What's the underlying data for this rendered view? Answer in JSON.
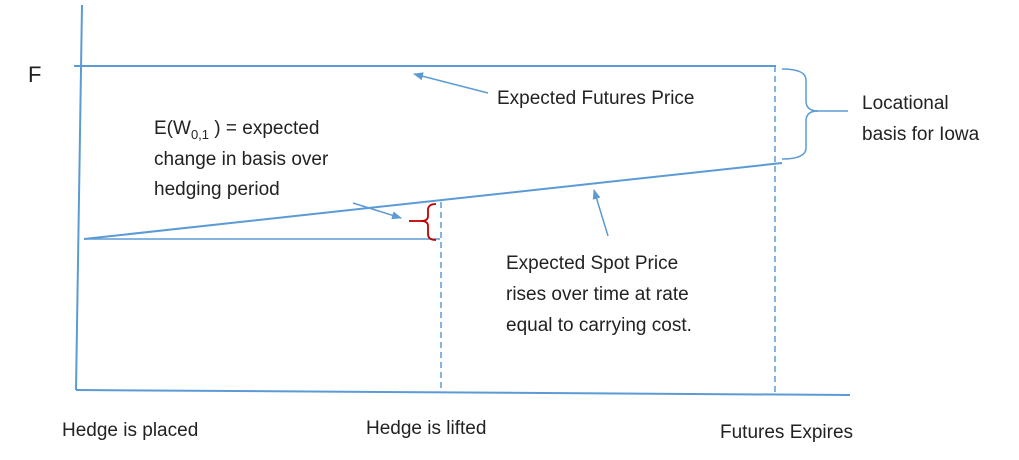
{
  "diagram": {
    "y_axis_label": "F",
    "labels": {
      "expected_futures_price": "Expected Futures Price",
      "locational_basis_line1": "Locational",
      "locational_basis_line2": "basis for Iowa",
      "basis_change_prefix": "E(W",
      "basis_change_subscript": "0,1",
      "basis_change_suffix": " ) = expected",
      "basis_change_line2": "change in basis over",
      "basis_change_line3": "hedging period",
      "spot_price_line1": "Expected Spot Price",
      "spot_price_line2": "rises over time at rate",
      "spot_price_line3": "equal to carrying cost."
    },
    "x_labels": {
      "hedge_placed": "Hedge is placed",
      "hedge_lifted": "Hedge is lifted",
      "futures_expires": "Futures Expires"
    },
    "colors": {
      "line": "#5b9bd5",
      "bracket": "#c00000",
      "text": "#222222"
    }
  }
}
